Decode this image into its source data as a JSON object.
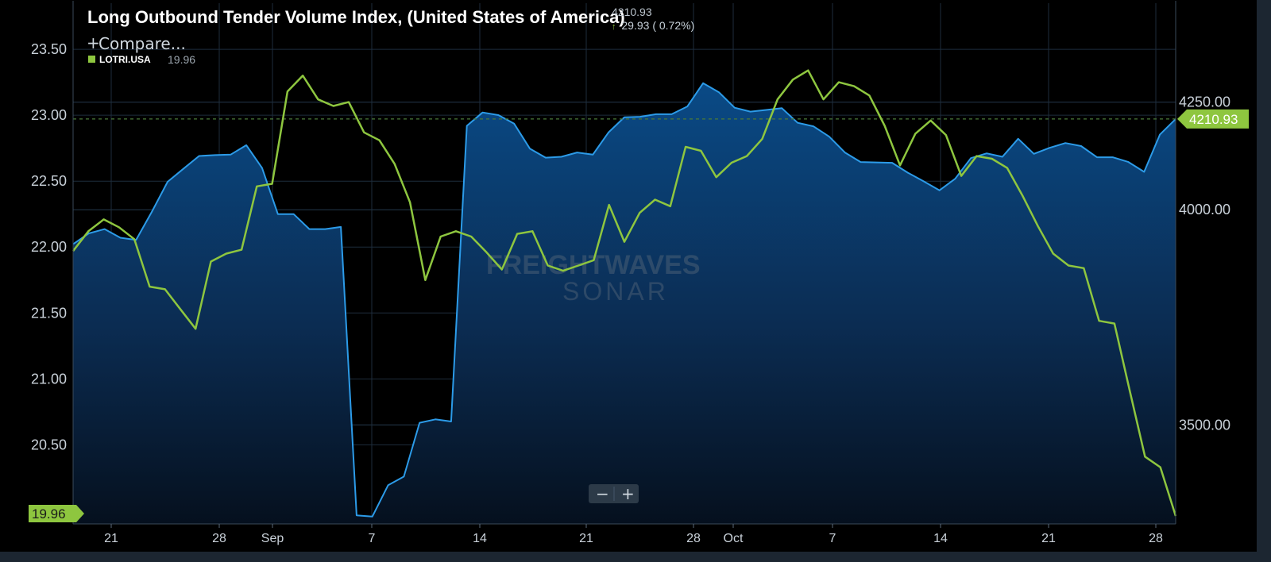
{
  "header": {
    "title": "Long Outbound Tender Volume Index, (United States of America)",
    "current_value": "4210.93",
    "change_arrow": "↑",
    "change_text": "29.93 ( 0.72%)",
    "compare_label": "Compare...",
    "compare_plus": "+"
  },
  "legend": {
    "series_code": "LOTRI.USA",
    "series_value": "19.96"
  },
  "badges": {
    "left": "19.96",
    "right": "4210.93"
  },
  "watermark": {
    "line1": "FREIGHTWAVES",
    "line2": "SONAR"
  },
  "zoom": {
    "minus": "−",
    "plus": "+"
  },
  "colors": {
    "background": "#000000",
    "frame": "#1c2631",
    "blue_series": "#2c9be8",
    "green_series": "#8ec63f",
    "gridline": "#2a3a4a"
  },
  "chart_data": {
    "type": "line",
    "title": "Long Outbound Tender Volume Index, (United States of America)",
    "x_tick_labels": [
      "21",
      "28",
      "Sep",
      "7",
      "14",
      "21",
      "28",
      "Oct",
      "7",
      "14",
      "21",
      "28"
    ],
    "left_axis": {
      "ylim": [
        19.9,
        23.85
      ],
      "ticks": [
        "20.50",
        "21.00",
        "21.50",
        "22.00",
        "22.50",
        "23.00",
        "23.50"
      ]
    },
    "right_axis": {
      "ylim": [
        3270,
        4480
      ],
      "ticks": [
        "3500.00",
        "4000.00",
        "4250.00"
      ]
    },
    "reference_line_right": 4210.93,
    "series": [
      {
        "axis": "right",
        "style": "area",
        "values": [
          3920,
          3945,
          3955,
          3935,
          3930,
          3995,
          4065,
          4095,
          4125,
          4127,
          4128,
          4150,
          4097,
          3990,
          3990,
          3955,
          3955,
          3960,
          3290,
          3287,
          3360,
          3380,
          3505,
          3513,
          3508,
          4195,
          4226,
          4220,
          4200,
          4142,
          4121,
          4123,
          4133,
          4128,
          4180,
          4215,
          4216,
          4222,
          4222,
          4240,
          4294,
          4273,
          4237,
          4228,
          4232,
          4236,
          4202,
          4194,
          4170,
          4133,
          4111,
          4110,
          4109,
          4086,
          4066,
          4045,
          4072,
          4120,
          4131,
          4123,
          4165,
          4130,
          4144,
          4155,
          4148,
          4122,
          4122,
          4111,
          4088,
          4175,
          4210.93
        ]
      },
      {
        "axis": "left",
        "name": "LOTRI.USA",
        "values": [
          21.97,
          22.12,
          22.21,
          22.15,
          22.06,
          21.7,
          21.68,
          21.53,
          21.38,
          21.89,
          21.95,
          21.98,
          22.46,
          22.48,
          23.18,
          23.3,
          23.12,
          23.07,
          23.1,
          22.87,
          22.81,
          22.63,
          22.34,
          21.75,
          22.08,
          22.12,
          22.08,
          21.96,
          21.83,
          22.1,
          22.12,
          21.86,
          21.82,
          21.86,
          21.9,
          22.32,
          22.04,
          22.26,
          22.36,
          22.31,
          22.76,
          22.73,
          22.53,
          22.64,
          22.69,
          22.82,
          23.12,
          23.27,
          23.34,
          23.12,
          23.25,
          23.22,
          23.15,
          22.92,
          22.62,
          22.86,
          22.96,
          22.85,
          22.54,
          22.69,
          22.67,
          22.6,
          22.39,
          22.16,
          21.95,
          21.86,
          21.84,
          21.44,
          21.42,
          20.91,
          20.41,
          20.33,
          19.96
        ]
      }
    ]
  }
}
